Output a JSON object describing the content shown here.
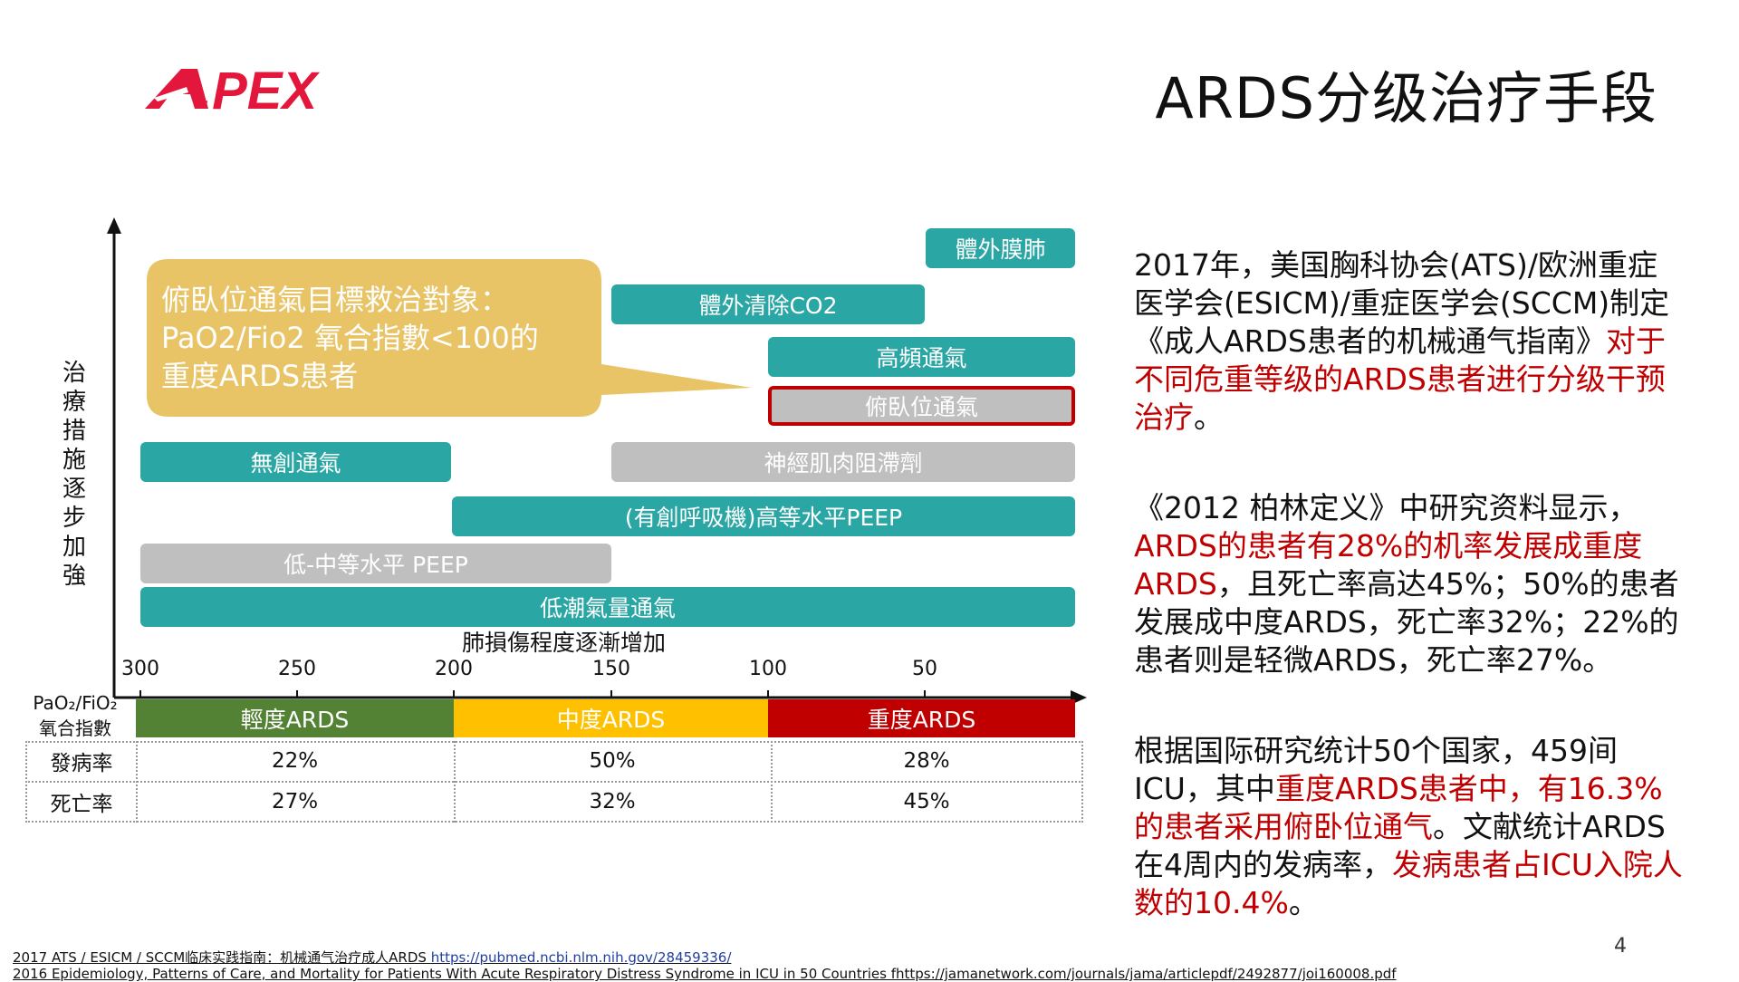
{
  "slide": {
    "title": "ARDS分级治疗手段",
    "logo_text": ".PEX",
    "page_number": "4"
  },
  "colors": {
    "teal": "#2aa7a4",
    "gray": "#bfbfbf",
    "callout": "#e8c466",
    "mild": "#548235",
    "moderate": "#ffc000",
    "severe": "#c00000",
    "highlight_text": "#c00000"
  },
  "callout": {
    "line1": "俯臥位通氣目標救治對象：",
    "line2": "PaO2/Fio2 氧合指數<100的",
    "line3": "重度ARDS患者"
  },
  "chart_data": {
    "type": "table",
    "y_axis_label": "治療措施逐步加強",
    "x_axis_label": "肺損傷程度逐漸增加",
    "x_ticks": [
      "300",
      "250",
      "200",
      "150",
      "100",
      "50"
    ],
    "x_direction": "decreasing",
    "treatments": [
      {
        "label": "體外膜肺",
        "from": 50,
        "to": 0,
        "style": "teal"
      },
      {
        "label": "體外清除CO2",
        "from": 150,
        "to": 50,
        "style": "teal"
      },
      {
        "label": "高頻通氣",
        "from": 100,
        "to": 0,
        "style": "teal"
      },
      {
        "label": "俯臥位通氣",
        "from": 100,
        "to": 0,
        "style": "gray-highlighted"
      },
      {
        "label": "無創通氣",
        "from": 300,
        "to": 200,
        "style": "teal"
      },
      {
        "label": "神經肌肉阻滯劑",
        "from": 150,
        "to": 0,
        "style": "gray"
      },
      {
        "label": "(有創呼吸機)高等水平PEEP",
        "from": 200,
        "to": 0,
        "style": "teal"
      },
      {
        "label": "低-中等水平 PEEP",
        "from": 300,
        "to": 150,
        "style": "gray"
      },
      {
        "label": "低潮氣量通氣",
        "from": 300,
        "to": 0,
        "style": "teal"
      }
    ],
    "ratio_label_line1": "PaO₂/FiO₂",
    "ratio_label_line2": "氧合指數",
    "severity": [
      {
        "label": "輕度ARDS",
        "from": 300,
        "to": 200
      },
      {
        "label": "中度ARDS",
        "from": 200,
        "to": 100
      },
      {
        "label": "重度ARDS",
        "from": 100,
        "to": 0
      }
    ],
    "rows": [
      {
        "name": "發病率",
        "values": [
          "22%",
          "50%",
          "28%"
        ]
      },
      {
        "name": "死亡率",
        "values": [
          "27%",
          "32%",
          "45%"
        ]
      }
    ]
  },
  "paragraphs": {
    "p1_black": "2017年，美国胸科协会(ATS)/欧洲重症医学会(ESICM)/重症医学会(SCCM)制定《成人ARDS患者的机械通气指南》",
    "p1_red": "对于不同危重等级的ARDS患者进行分级干预治疗",
    "p1_end": "。",
    "p2_black1": "《2012  柏林定义》中研究资料显示，",
    "p2_red": "ARDS的患者有28%的机率发展成重度ARDS",
    "p2_black2": "，且死亡率高达45%；50%的患者发展成中度ARDS，死亡率32%；22%的患者则是轻微ARDS，死亡率27%。",
    "p3_black1": "根据国际研究统计50个国家，459间ICU，其中",
    "p3_red1": "重度ARDS患者中，有16.3%的患者采用俯卧位通气",
    "p3_black2": "。文献统计ARDS在4周内的发病率，",
    "p3_red2": "发病患者占ICU入院人数的10.4%",
    "p3_end": "。"
  },
  "references": {
    "ref1_text": "2017 ATS / ESICM / SCCM临床实践指南：机械通气治疗成人ARDS ",
    "ref1_link": "https://pubmed.ncbi.nlm.nih.gov/28459336/",
    "ref2_text": "2016 Epidemiology, Patterns of Care, and Mortality for Patients With Acute Respiratory Distress Syndrome in ICU in 50 Countries fhttps://jamanetwork.com/journals/jama/articlepdf/2492877/joi160008.pdf"
  }
}
